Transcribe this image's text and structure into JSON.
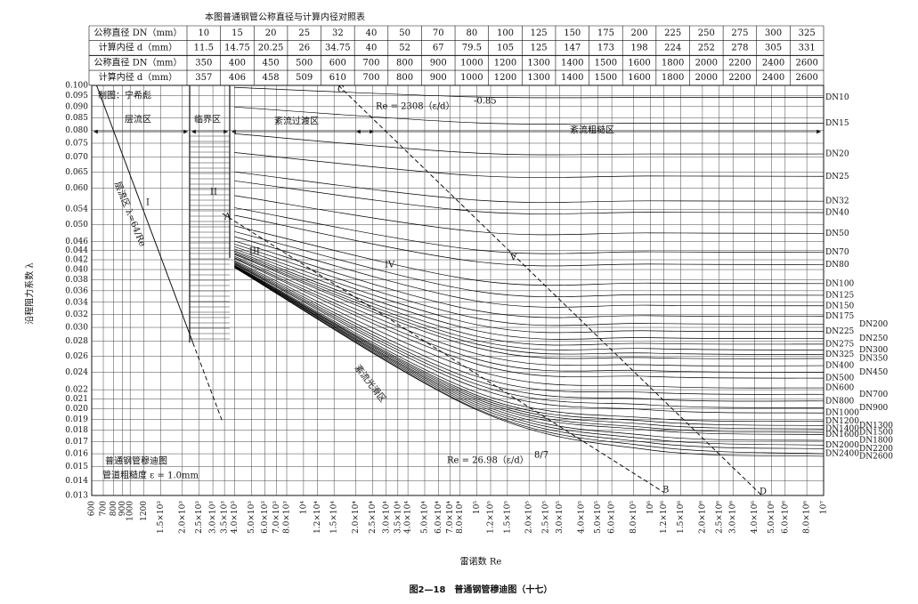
{
  "chart_data": {
    "type": "line",
    "title": "本图普通钢管公称直径与计算内径对照表",
    "x_label": "雷诺数 Re",
    "y_label": "沿程阻力系数 λ",
    "caption": "图2—18　普通钢管穆迪图（十七）",
    "log_x": true,
    "log_y": true,
    "grid": true,
    "color": "#000000",
    "table": {
      "rows": [
        [
          "公称直径 DN（mm）",
          "10",
          "15",
          "20",
          "25",
          "32",
          "40",
          "50",
          "70",
          "80",
          "100",
          "125",
          "150",
          "175",
          "200",
          "225",
          "250",
          "275",
          "300",
          "325"
        ],
        [
          "计算内径 d（mm）",
          "11.5",
          "14.75",
          "20.25",
          "26",
          "34.75",
          "40",
          "52",
          "67",
          "79.5",
          "105",
          "125",
          "147",
          "173",
          "198",
          "224",
          "252",
          "278",
          "305",
          "331"
        ],
        [
          "公称直径 DN（mm）",
          "350",
          "400",
          "450",
          "500",
          "600",
          "700",
          "800",
          "900",
          "1000",
          "1200",
          "1300",
          "1400",
          "1500",
          "1600",
          "1800",
          "2000",
          "2200",
          "2400",
          "2600"
        ],
        [
          "计算内径 d（mm）",
          "357",
          "406",
          "458",
          "509",
          "610",
          "700",
          "800",
          "900",
          "1000",
          "1200",
          "1300",
          "1400",
          "1500",
          "1600",
          "1800",
          "2000",
          "2200",
          "2400",
          "2600"
        ]
      ]
    },
    "xlim": [
      600,
      10000000
    ],
    "ylim": [
      0.013,
      0.1
    ],
    "xticks": [
      600,
      700,
      800,
      900,
      1000,
      1200,
      {
        "value": 1500,
        "label": "1.5×10³"
      },
      {
        "value": 2000,
        "label": "2.0×10³"
      },
      {
        "value": 2500,
        "label": "2.5×10³"
      },
      {
        "value": 3000,
        "label": "3.0×10³"
      },
      {
        "value": 3500,
        "label": "3.5×10³"
      },
      {
        "value": 4000,
        "label": "4.0×10³"
      },
      {
        "value": 5000,
        "label": "5.0×10³"
      },
      {
        "value": 6000,
        "label": "6.0×10³"
      },
      {
        "value": 7000,
        "label": "7.0×10³"
      },
      {
        "value": 8000,
        "label": "8.0×10³"
      },
      {
        "value": 10000,
        "label": "10⁴"
      },
      {
        "value": 12000,
        "label": "1.2×10⁴"
      },
      {
        "value": 15000,
        "label": "1.5×10⁴"
      },
      {
        "value": 20000,
        "label": "2.0×10⁴"
      },
      {
        "value": 25000,
        "label": "2.5×10⁴"
      },
      {
        "value": 30000,
        "label": "3.0×10⁴"
      },
      {
        "value": 35000,
        "label": "3.5×10⁴"
      },
      {
        "value": 40000,
        "label": "4.0×10⁴"
      },
      {
        "value": 50000,
        "label": "5.0×10⁴"
      },
      {
        "value": 60000,
        "label": "6.0×10⁴"
      },
      {
        "value": 70000,
        "label": "7.0×10⁴"
      },
      {
        "value": 80000,
        "label": "8.0×10⁴"
      },
      {
        "value": 100000,
        "label": "10⁵"
      },
      {
        "value": 120000,
        "label": "1.2×10⁵"
      },
      {
        "value": 150000,
        "label": "1.5×10⁵"
      },
      {
        "value": 200000,
        "label": "2.0×10⁵"
      },
      {
        "value": 250000,
        "label": "2.5×10⁵"
      },
      {
        "value": 300000,
        "label": "3.0×10⁵"
      },
      {
        "value": 400000,
        "label": "4.0×10⁵"
      },
      {
        "value": 500000,
        "label": "5.0×10⁵"
      },
      {
        "value": 600000,
        "label": "6.0×10⁵"
      },
      {
        "value": 800000,
        "label": "8.0×10⁵"
      },
      {
        "value": 1000000,
        "label": "10⁶"
      },
      {
        "value": 1200000,
        "label": "1.2×10⁶"
      },
      {
        "value": 1500000,
        "label": "1.5×10⁶"
      },
      {
        "value": 2000000,
        "label": "2.0×10⁶"
      },
      {
        "value": 2500000,
        "label": "2.5×10⁶"
      },
      {
        "value": 3000000,
        "label": "3.0×10⁶"
      },
      {
        "value": 4000000,
        "label": "4.0×10⁶"
      },
      {
        "value": 5000000,
        "label": "5.0×10⁶"
      },
      {
        "value": 6000000,
        "label": "6.0×10⁶"
      },
      {
        "value": 8000000,
        "label": "8.0×10⁶"
      },
      {
        "value": 10000000,
        "label": "10⁷"
      }
    ],
    "yticks": [
      {
        "value": 0.1,
        "label": "0.100"
      },
      0.095,
      {
        "value": 0.09,
        "label": "0.090"
      },
      0.085,
      {
        "value": 0.08,
        "label": "0.080"
      },
      0.075,
      {
        "value": 0.07,
        "label": "0.070"
      },
      0.065,
      {
        "value": 0.06,
        "label": "0.060"
      },
      0.054,
      {
        "value": 0.05,
        "label": "0.050"
      },
      0.046,
      0.044,
      0.042,
      {
        "value": 0.04,
        "label": "0.040"
      },
      0.038,
      0.036,
      0.034,
      0.032,
      {
        "value": 0.03,
        "label": "0.030"
      },
      0.028,
      0.026,
      0.024,
      0.022,
      0.021,
      {
        "value": 0.02,
        "label": "0.020"
      },
      0.019,
      0.018,
      0.017,
      0.016,
      0.015,
      0.014,
      0.013
    ],
    "x": [
      4000,
      100000,
      1000000,
      10000000
    ],
    "series": [
      {
        "name": "DN10",
        "values": [
          0.099,
          0.0944,
          0.0942,
          0.0942
        ]
      },
      {
        "name": "DN15",
        "values": [
          0.0898,
          0.083,
          0.0829,
          0.0829
        ]
      },
      {
        "name": "DN20",
        "values": [
          0.0786,
          0.0714,
          0.0711,
          0.0711
        ]
      },
      {
        "name": "DN25",
        "values": [
          0.0716,
          0.0638,
          0.0637,
          0.0636
        ]
      },
      {
        "name": "DN32",
        "values": [
          0.065,
          0.0565,
          0.0563,
          0.0562
        ]
      },
      {
        "name": "DN40",
        "values": [
          0.0622,
          0.0534,
          0.0532,
          0.0531
        ]
      },
      {
        "name": "DN50",
        "values": [
          0.0578,
          0.0483,
          0.048,
          0.0479
        ]
      },
      {
        "name": "DN70",
        "values": [
          0.0544,
          0.0441,
          0.0437,
          0.0436
        ]
      },
      {
        "name": "DN80",
        "values": [
          0.0524,
          0.0416,
          0.0411,
          0.041
        ]
      },
      {
        "name": "DN100",
        "values": [
          0.0497,
          0.0379,
          0.0374,
          0.0373
        ]
      },
      {
        "name": "DN125",
        "values": [
          0.0483,
          0.0359,
          0.0353,
          0.0352
        ]
      },
      {
        "name": "DN150",
        "values": [
          0.0471,
          0.0342,
          0.0335,
          0.0334
        ]
      },
      {
        "name": "DN175",
        "values": [
          0.0461,
          0.0326,
          0.0318,
          0.0317
        ]
      },
      {
        "name": "DN200",
        "values": [
          0.0454,
          0.0314,
          0.0306,
          0.0305
        ]
      },
      {
        "name": "DN225",
        "values": [
          0.0448,
          0.0304,
          0.0295,
          0.0294
        ]
      },
      {
        "name": "DN250",
        "values": [
          0.0443,
          0.0295,
          0.0285,
          0.0284
        ]
      },
      {
        "name": "DN275",
        "values": [
          0.0439,
          0.0287,
          0.0277,
          0.0276
        ]
      },
      {
        "name": "DN300",
        "values": [
          0.0436,
          0.0281,
          0.027,
          0.0268
        ]
      },
      {
        "name": "DN325",
        "values": [
          0.0433,
          0.0276,
          0.0264,
          0.0262
        ]
      },
      {
        "name": "DN350",
        "values": [
          0.0431,
          0.0271,
          0.0258,
          0.0257
        ]
      },
      {
        "name": "DN400",
        "values": [
          0.0427,
          0.0263,
          0.0249,
          0.0248
        ]
      },
      {
        "name": "DN450",
        "values": [
          0.0424,
          0.0256,
          0.0242,
          0.024
        ]
      },
      {
        "name": "DN500",
        "values": [
          0.0422,
          0.025,
          0.0235,
          0.0233
        ]
      },
      {
        "name": "DN600",
        "values": [
          0.0418,
          0.0242,
          0.0224,
          0.0222
        ]
      },
      {
        "name": "DN700",
        "values": [
          0.0416,
          0.0235,
          0.0217,
          0.0215
        ]
      },
      {
        "name": "DN800",
        "values": [
          0.0414,
          0.023,
          0.021,
          0.0208
        ]
      },
      {
        "name": "DN900",
        "values": [
          0.0412,
          0.0226,
          0.0204,
          0.0201
        ]
      },
      {
        "name": "DN1000",
        "values": [
          0.0411,
          0.0222,
          0.0199,
          0.0196
        ]
      },
      {
        "name": "DN1200",
        "values": [
          0.0409,
          0.0217,
          0.0191,
          0.0188
        ]
      },
      {
        "name": "DN1300",
        "values": [
          0.0408,
          0.0214,
          0.0188,
          0.0184
        ]
      },
      {
        "name": "DN1400",
        "values": [
          0.0407,
          0.0212,
          0.0185,
          0.0181
        ]
      },
      {
        "name": "DN1500",
        "values": [
          0.0407,
          0.021,
          0.0182,
          0.0178
        ]
      },
      {
        "name": "DN1600",
        "values": [
          0.0406,
          0.0208,
          0.018,
          0.0176
        ]
      },
      {
        "name": "DN1800",
        "values": [
          0.0405,
          0.0206,
          0.0175,
          0.0171
        ]
      },
      {
        "name": "DN2000",
        "values": [
          0.0405,
          0.0204,
          0.0172,
          0.0167
        ]
      },
      {
        "name": "DN2200",
        "values": [
          0.0404,
          0.0202,
          0.0169,
          0.0164
        ]
      },
      {
        "name": "DN2400",
        "values": [
          0.0404,
          0.02,
          0.0166,
          0.016
        ]
      },
      {
        "name": "DN2600",
        "values": [
          0.0404,
          0.0199,
          0.0163,
          0.0158
        ]
      }
    ],
    "reference_lines": [
      {
        "x": [
          640,
          2300
        ],
        "values": [
          0.1,
          0.0278
        ],
        "dashed": false
      },
      {
        "x": [
          2300,
          3400
        ],
        "values": [
          0.0278,
          0.0188
        ],
        "dashed": true
      },
      {
        "x": [
          3400,
          1200000
        ],
        "values": [
          0.0529,
          0.0132
        ],
        "dashed": true
      },
      {
        "x": [
          15900,
          4400000
        ],
        "values": [
          0.1,
          0.013
        ],
        "dashed": true
      }
    ],
    "annotations": [
      "制图：宁希彪",
      "层流区",
      "临界区",
      "紊流过渡区",
      "紊流粗糙区",
      "I",
      "II",
      "III",
      "IV",
      "V",
      "A",
      "B",
      "C",
      "D",
      "层流区 λ=64/Re",
      "紊流光滑区",
      "Re = 2308（ε/d）",
      "-0.85",
      "Re = 26.98（ε/d）",
      "8/7",
      "普通钢管穆迪图",
      "管道粗糙度 ε = 1.0mm"
    ]
  }
}
